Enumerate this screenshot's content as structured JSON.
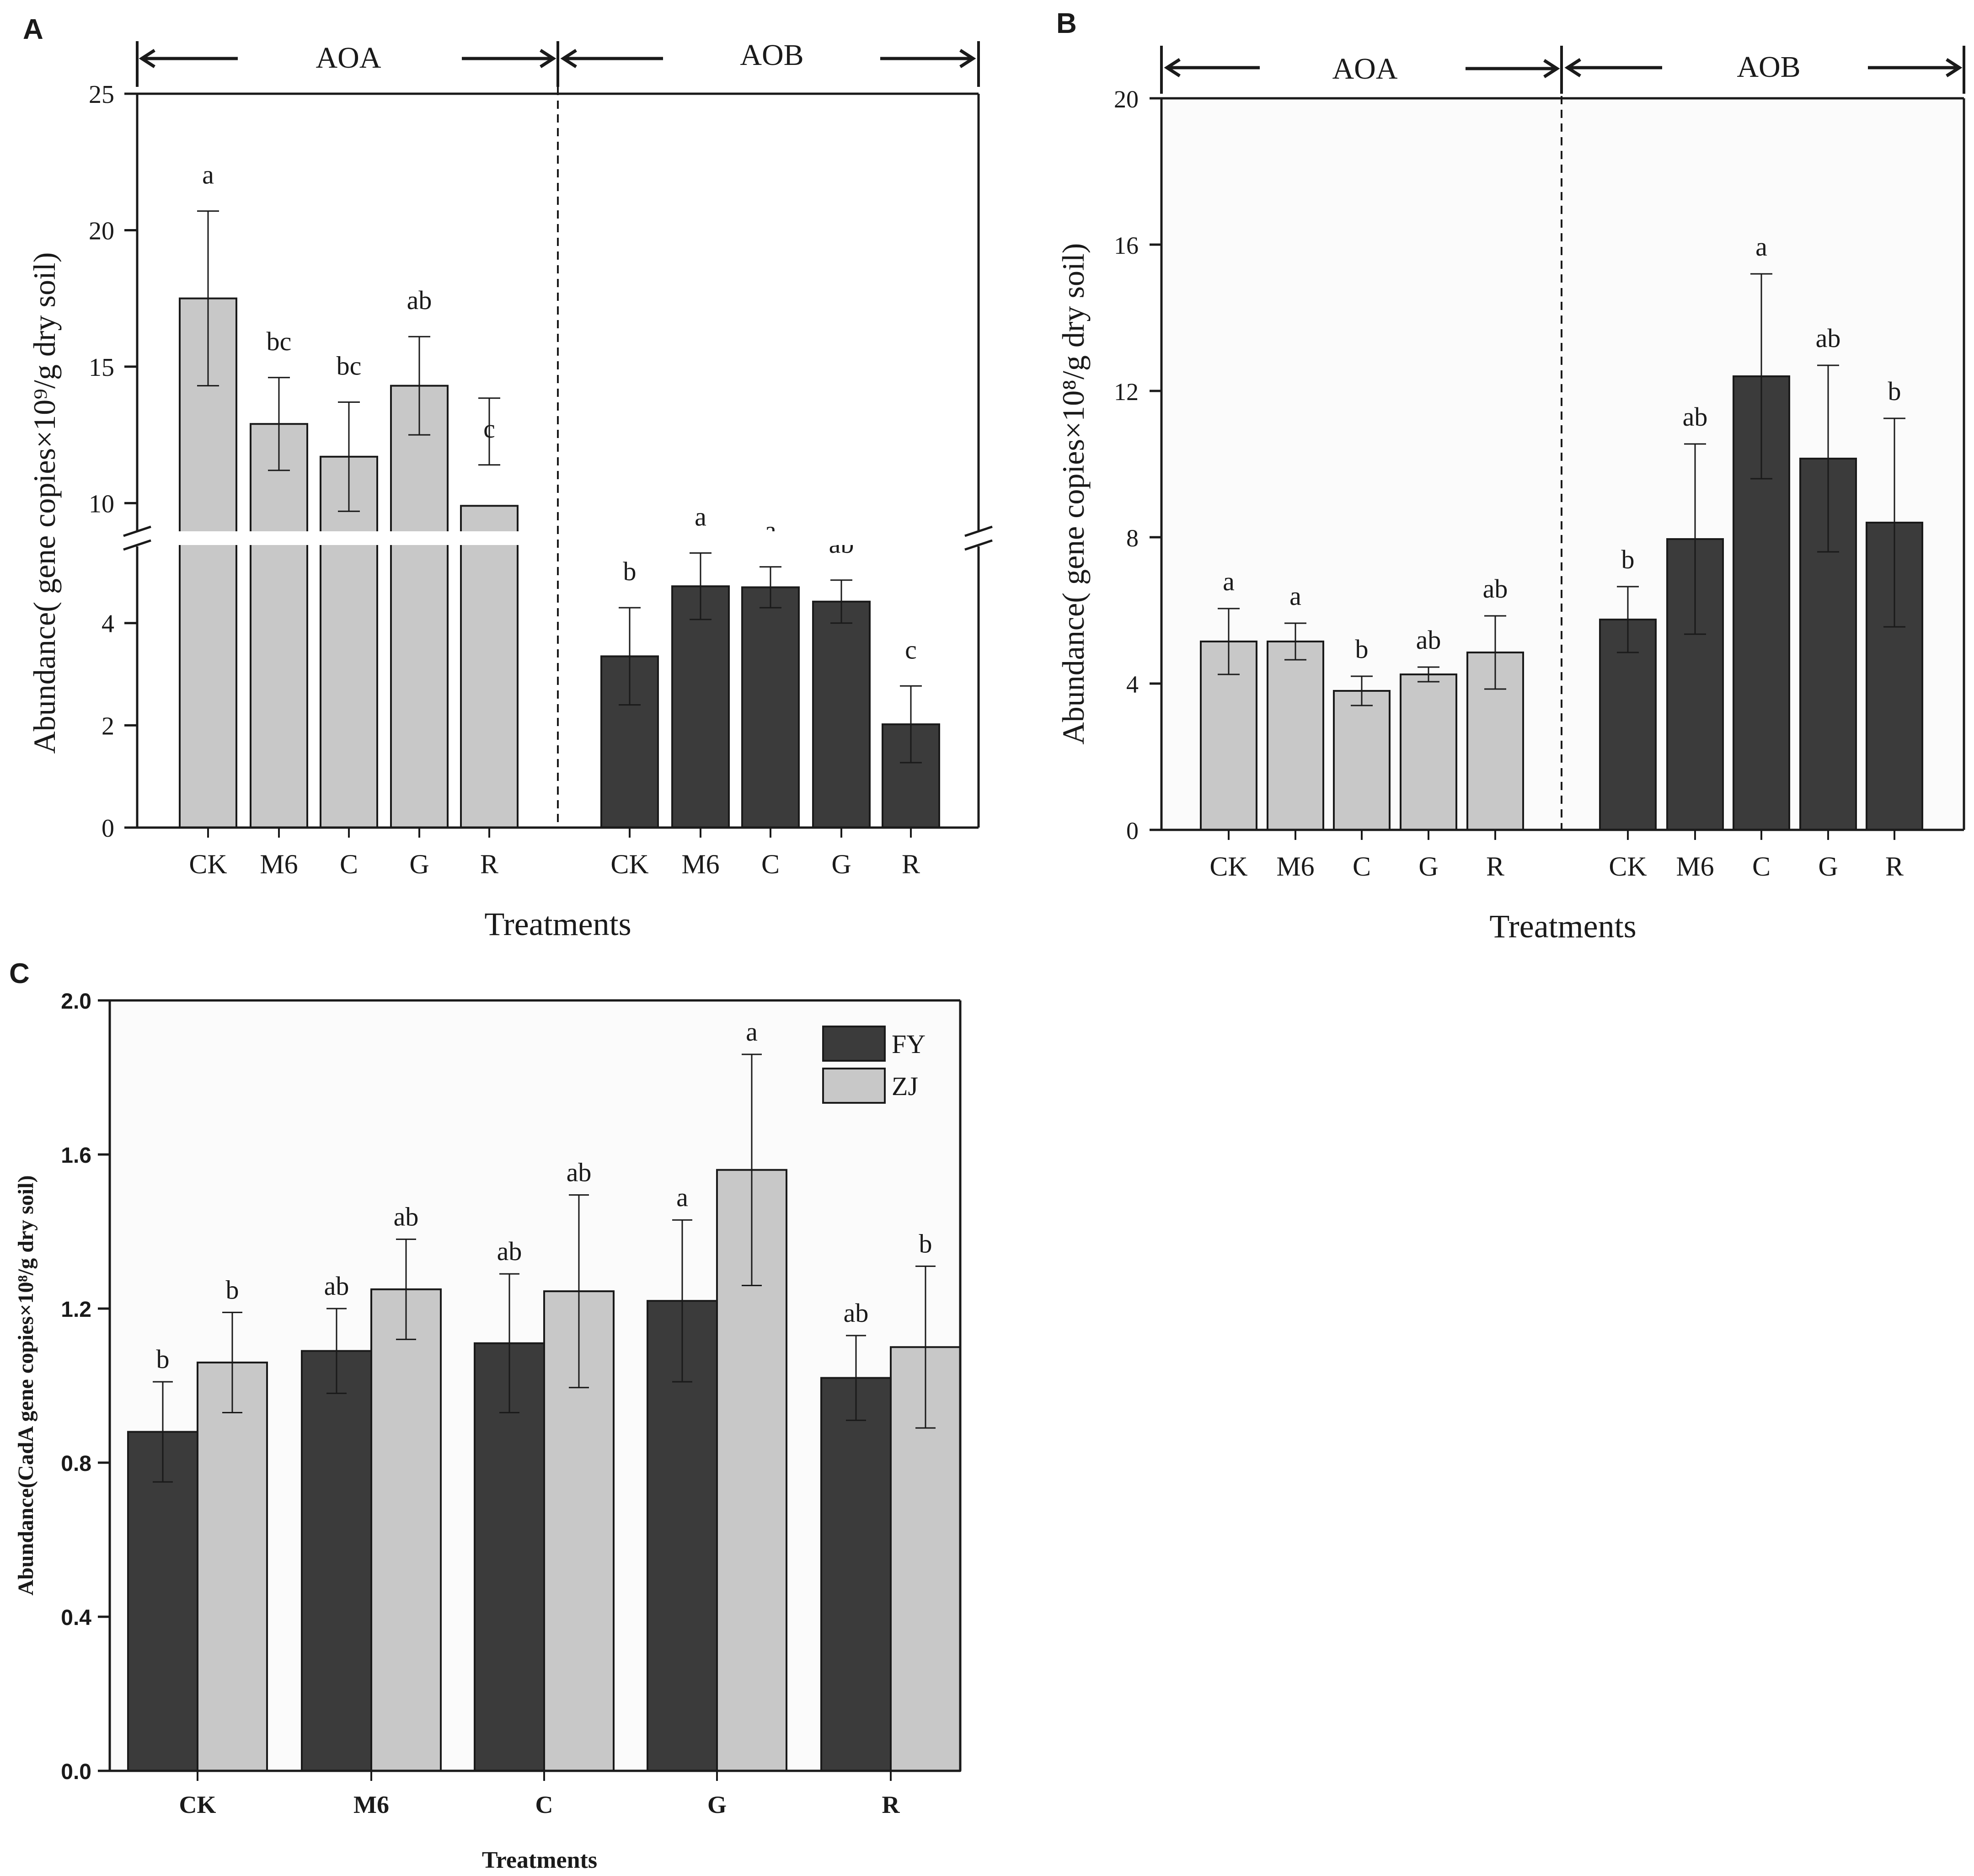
{
  "colors": {
    "light": "#c8c8c8",
    "dark": "#3b3b3b",
    "axis": "#1a1a1a",
    "plot_bg": "#fbfbfb"
  },
  "chart_data": [
    {
      "panel": "A",
      "type": "bar",
      "title": "",
      "xlabel": "Treatments",
      "ylabel": "Abundance( gene copies×10⁹/g dry soil)",
      "broken_axis": {
        "lower": [
          0,
          5.5
        ],
        "upper": [
          9,
          25
        ]
      },
      "lower_ticks": [
        0,
        2,
        4
      ],
      "upper_ticks": [
        10,
        15,
        20,
        25
      ],
      "categories": [
        "CK",
        "M6",
        "C",
        "G",
        "R"
      ],
      "groups": [
        "AOA",
        "AOB"
      ],
      "series": [
        {
          "name": "AOA",
          "color": "light",
          "values": [
            17.5,
            12.9,
            11.7,
            14.3,
            9.9
          ],
          "errors": [
            3.2,
            1.7,
            2.0,
            1.8,
            1.5
          ],
          "letters": [
            "a",
            "bc",
            "bc",
            "ab",
            "c"
          ]
        },
        {
          "name": "AOB",
          "color": "dark",
          "values": [
            3.35,
            4.72,
            4.7,
            4.42,
            2.02
          ],
          "errors": [
            0.95,
            0.65,
            0.4,
            0.42,
            0.75
          ],
          "letters": [
            "b",
            "a",
            "a",
            "ab",
            "c"
          ]
        }
      ]
    },
    {
      "panel": "B",
      "type": "bar",
      "title": "",
      "xlabel": "Treatments",
      "ylabel": "Abundance( gene copies×10⁸/g dry soil)",
      "ylim": [
        0,
        20
      ],
      "ticks": [
        0,
        4,
        8,
        12,
        16,
        20
      ],
      "categories": [
        "CK",
        "M6",
        "C",
        "G",
        "R"
      ],
      "groups": [
        "AOA",
        "AOB"
      ],
      "series": [
        {
          "name": "AOA",
          "color": "light",
          "values": [
            5.15,
            5.15,
            3.8,
            4.25,
            4.85
          ],
          "errors": [
            0.9,
            0.5,
            0.4,
            0.2,
            1.0
          ],
          "letters": [
            "a",
            "a",
            "b",
            "ab",
            "ab"
          ]
        },
        {
          "name": "AOB",
          "color": "dark",
          "values": [
            5.75,
            7.95,
            12.4,
            10.15,
            8.4
          ],
          "errors": [
            0.9,
            2.6,
            2.8,
            2.55,
            2.85
          ],
          "letters": [
            "b",
            "ab",
            "a",
            "ab",
            "b"
          ]
        }
      ]
    },
    {
      "panel": "C",
      "type": "bar",
      "title": "",
      "xlabel": "Treatments",
      "ylabel": "Abundance(CadA gene copies×10⁸/g dry soil)",
      "ylim": [
        0,
        2.0
      ],
      "ticks": [
        "0.0",
        "0.4",
        "0.8",
        "1.2",
        "1.6",
        "2.0"
      ],
      "categories": [
        "CK",
        "M6",
        "C",
        "G",
        "R"
      ],
      "legend_position": "top-right",
      "series": [
        {
          "name": "FY",
          "color": "dark",
          "values": [
            0.88,
            1.09,
            1.11,
            1.22,
            1.02
          ],
          "errors": [
            0.13,
            0.11,
            0.18,
            0.21,
            0.11
          ],
          "letters": [
            "b",
            "ab",
            "ab",
            "a",
            "ab"
          ]
        },
        {
          "name": "ZJ",
          "color": "light",
          "values": [
            1.06,
            1.25,
            1.245,
            1.56,
            1.1
          ],
          "errors": [
            0.13,
            0.13,
            0.25,
            0.3,
            0.21
          ],
          "letters": [
            "b",
            "ab",
            "ab",
            "a",
            "b"
          ]
        }
      ]
    }
  ]
}
